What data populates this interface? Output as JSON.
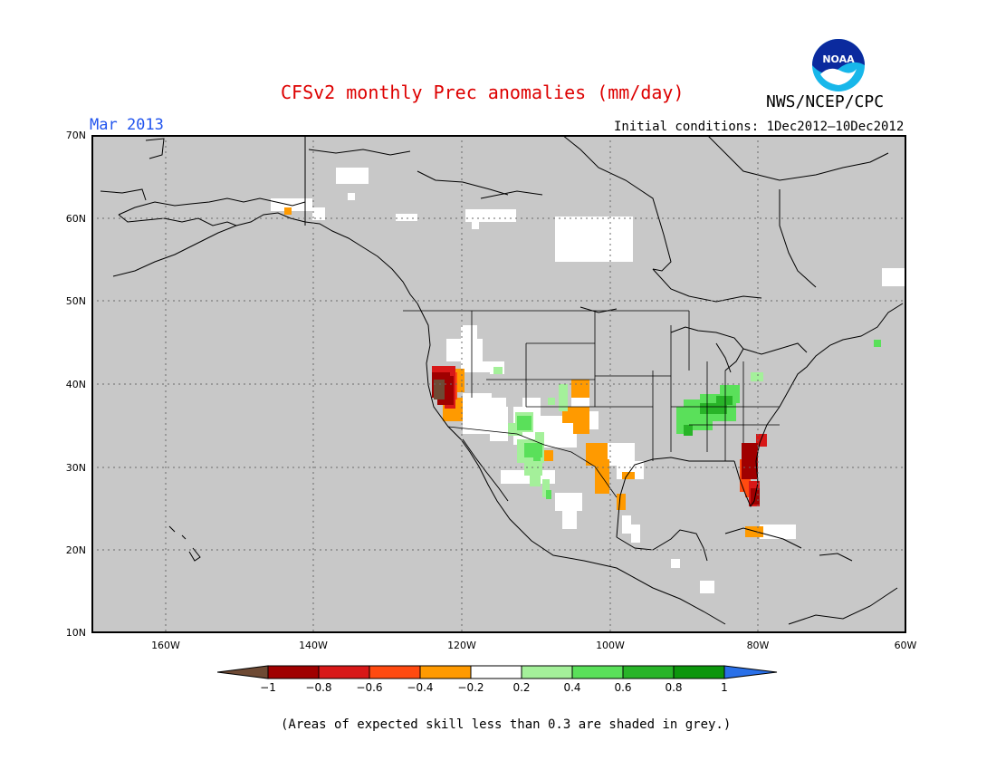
{
  "header": {
    "title": "CFSv2 monthly Prec anomalies (mm/day)",
    "org": "NWS/NCEP/CPC",
    "month": "Mar 2013",
    "initial_conditions": "Initial conditions: 1Dec2012—10Dec2012",
    "logo_text": "NOAA"
  },
  "map": {
    "lat_labels": [
      "70N",
      "60N",
      "50N",
      "40N",
      "30N",
      "20N",
      "10N"
    ],
    "lon_labels": [
      "160W",
      "140W",
      "120W",
      "100W",
      "80W",
      "60W"
    ],
    "background_color": "#c8c8c8",
    "anomalies": [
      {
        "region": "Northern California coast",
        "value": -1.0
      },
      {
        "region": "Northern Florida",
        "value": -0.9
      },
      {
        "region": "Central Florida",
        "value": -0.6
      },
      {
        "region": "Southern California",
        "value": -0.5
      },
      {
        "region": "Southern Colorado / New Mexico",
        "value": -0.3
      },
      {
        "region": "Northeastern Mexico",
        "value": -0.3
      },
      {
        "region": "Cuba",
        "value": -0.3
      },
      {
        "region": "Ohio / Tennessee Valley",
        "value": 0.5
      },
      {
        "region": "Arizona / Sonora",
        "value": 0.3
      },
      {
        "region": "Nova Scotia",
        "value": 0.5
      }
    ]
  },
  "colorbar": {
    "labels": [
      "−1",
      "−0.8",
      "−0.6",
      "−0.4",
      "−0.2",
      "0.2",
      "0.4",
      "0.6",
      "0.8",
      "1"
    ],
    "colors": [
      "#6e4a34",
      "#a00000",
      "#d81818",
      "#ff4a10",
      "#ff9a00",
      "#ffffff",
      "#a4f09a",
      "#5ae05a",
      "#28b428",
      "#0c960c",
      "#2a70e8"
    ]
  },
  "footnote": "(Areas of expected skill less than 0.3 are shaded in grey.)"
}
